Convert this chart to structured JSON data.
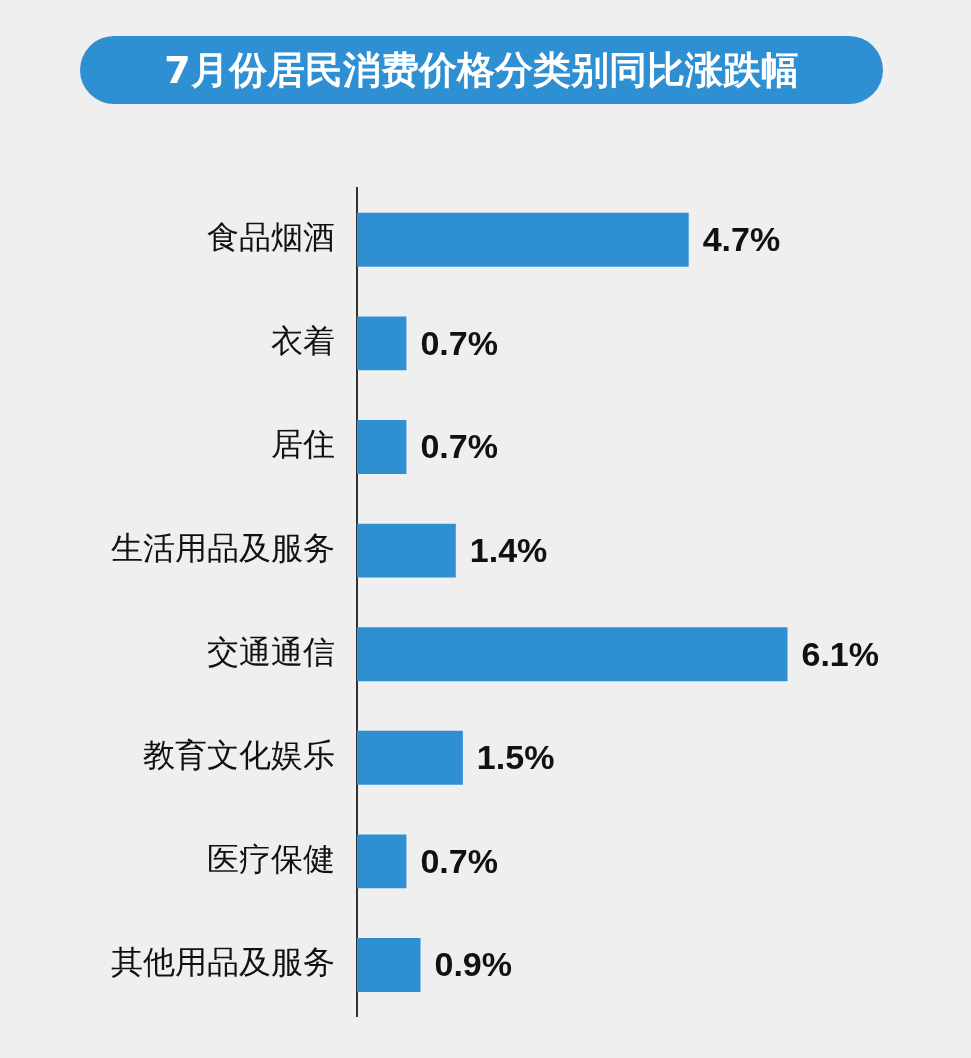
{
  "chart_data": {
    "type": "bar",
    "orientation": "horizontal",
    "title": "7月份居民消费价格分类别同比涨跌幅",
    "categories": [
      "食品烟酒",
      "衣着",
      "居住",
      "生活用品及服务",
      "交通通信",
      "教育文化娱乐",
      "医疗保健",
      "其他用品及服务"
    ],
    "values": [
      4.7,
      0.7,
      0.7,
      1.4,
      6.1,
      1.5,
      0.7,
      0.9
    ],
    "value_labels": [
      "4.7%",
      "0.7%",
      "0.7%",
      "1.4%",
      "6.1%",
      "1.5%",
      "0.7%",
      "0.9%"
    ],
    "color": "#2f8fd3",
    "xlim": [
      0,
      8.7
    ],
    "tick_labels": "y",
    "grid": false,
    "legend": false
  }
}
